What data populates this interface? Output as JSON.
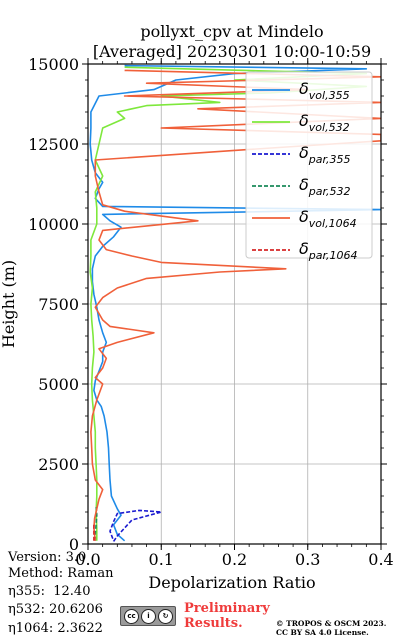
{
  "chart_data": {
    "type": "line",
    "title": "pollyxt_cpv at Mindelo",
    "subtitle": "[Averaged] 20230301 10:00-10:59",
    "xlabel": "Depolarization Ratio",
    "ylabel": "Height (m)",
    "xlim": [
      0.0,
      0.4
    ],
    "ylim": [
      0,
      15000
    ],
    "x_ticks": [
      "0.0",
      "0.1",
      "0.2",
      "0.3",
      "0.4"
    ],
    "y_ticks": [
      "0",
      "2500",
      "5000",
      "7500",
      "10000",
      "12500",
      "15000"
    ],
    "grid": true,
    "legend_position": "upper-right",
    "series": [
      {
        "name": "δ vol,355",
        "symbol": "δ",
        "sub": "vol,355",
        "color": "#1f8be8",
        "dash": "solid",
        "points": [
          [
            0.05,
            100
          ],
          [
            0.04,
            300
          ],
          [
            0.035,
            600
          ],
          [
            0.045,
            900
          ],
          [
            0.04,
            1100
          ],
          [
            0.032,
            1500
          ],
          [
            0.03,
            2000
          ],
          [
            0.029,
            2500
          ],
          [
            0.028,
            3000
          ],
          [
            0.026,
            3500
          ],
          [
            0.022,
            4000
          ],
          [
            0.018,
            4300
          ],
          [
            0.012,
            4500
          ],
          [
            0.008,
            4800
          ],
          [
            0.01,
            5100
          ],
          [
            0.015,
            5400
          ],
          [
            0.02,
            5700
          ],
          [
            0.02,
            6000
          ],
          [
            0.025,
            6300
          ],
          [
            0.02,
            6600
          ],
          [
            0.015,
            7000
          ],
          [
            0.012,
            7400
          ],
          [
            0.008,
            7800
          ],
          [
            0.006,
            8200
          ],
          [
            0.006,
            8600
          ],
          [
            0.01,
            9000
          ],
          [
            0.02,
            9300
          ],
          [
            0.035,
            9600
          ],
          [
            0.045,
            9900
          ],
          [
            0.03,
            10100
          ],
          [
            0.02,
            10300
          ],
          [
            0.4,
            10450
          ],
          [
            0.02,
            10550
          ],
          [
            0.01,
            10800
          ],
          [
            0.015,
            11100
          ],
          [
            0.02,
            11300
          ],
          [
            0.01,
            11600
          ],
          [
            0.005,
            12000
          ],
          [
            0.003,
            12500
          ],
          [
            0.004,
            13000
          ],
          [
            0.004,
            13500
          ],
          [
            0.015,
            14000
          ],
          [
            0.09,
            14200
          ],
          [
            0.12,
            14500
          ],
          [
            0.2,
            14700
          ],
          [
            0.38,
            14850
          ],
          [
            0.05,
            14950
          ]
        ]
      },
      {
        "name": "δ vol,532",
        "symbol": "δ",
        "sub": "vol,532",
        "color": "#7ee83c",
        "dash": "solid",
        "points": [
          [
            0.012,
            100
          ],
          [
            0.012,
            500
          ],
          [
            0.011,
            1000
          ],
          [
            0.012,
            1500
          ],
          [
            0.012,
            2000
          ],
          [
            0.011,
            2500
          ],
          [
            0.01,
            3000
          ],
          [
            0.01,
            3500
          ],
          [
            0.008,
            4000
          ],
          [
            0.006,
            4500
          ],
          [
            0.005,
            5000
          ],
          [
            0.006,
            5500
          ],
          [
            0.008,
            6000
          ],
          [
            0.007,
            6500
          ],
          [
            0.005,
            7000
          ],
          [
            0.004,
            7500
          ],
          [
            0.006,
            8000
          ],
          [
            0.003,
            8500
          ],
          [
            0.004,
            9000
          ],
          [
            0.004,
            9500
          ],
          [
            0.012,
            10000
          ],
          [
            0.012,
            10500
          ],
          [
            0.01,
            11000
          ],
          [
            0.02,
            11500
          ],
          [
            0.01,
            12000
          ],
          [
            0.015,
            12500
          ],
          [
            0.02,
            13000
          ],
          [
            0.05,
            13300
          ],
          [
            0.04,
            13500
          ],
          [
            0.08,
            13700
          ],
          [
            0.18,
            13800
          ],
          [
            0.1,
            14000
          ],
          [
            0.25,
            14100
          ],
          [
            0.38,
            14300
          ],
          [
            0.2,
            14500
          ],
          [
            0.38,
            14700
          ],
          [
            0.05,
            14900
          ]
        ]
      },
      {
        "name": "δ par,355",
        "symbol": "δ",
        "sub": "par,355",
        "color": "#1a1ad0",
        "dash": "4,2",
        "points": [
          [
            0.035,
            80
          ],
          [
            0.04,
            250
          ],
          [
            0.05,
            500
          ],
          [
            0.06,
            750
          ],
          [
            0.1,
            1000
          ],
          [
            0.07,
            1050
          ],
          [
            0.04,
            950
          ],
          [
            0.035,
            700
          ],
          [
            0.03,
            400
          ],
          [
            0.035,
            100
          ]
        ]
      },
      {
        "name": "δ par,532",
        "symbol": "δ",
        "sub": "par,532",
        "color": "#1a8a5a",
        "dash": "4,2",
        "points": [
          [
            0.01,
            100
          ],
          [
            0.01,
            300
          ],
          [
            0.011,
            600
          ],
          [
            0.012,
            900
          ],
          [
            0.011,
            1200
          ]
        ]
      },
      {
        "name": "δ vol,1064",
        "symbol": "δ",
        "sub": "vol,1064",
        "color": "#f0603a",
        "dash": "solid",
        "points": [
          [
            0.01,
            100
          ],
          [
            0.008,
            500
          ],
          [
            0.009,
            800
          ],
          [
            0.012,
            1100
          ],
          [
            0.015,
            1400
          ],
          [
            0.02,
            1700
          ],
          [
            0.01,
            2000
          ],
          [
            0.006,
            2500
          ],
          [
            0.005,
            3000
          ],
          [
            0.004,
            3500
          ],
          [
            0.006,
            4000
          ],
          [
            0.012,
            4500
          ],
          [
            0.02,
            5000
          ],
          [
            0.01,
            5200
          ],
          [
            0.02,
            5500
          ],
          [
            0.025,
            5800
          ],
          [
            0.015,
            6100
          ],
          [
            0.04,
            6300
          ],
          [
            0.09,
            6600
          ],
          [
            0.03,
            6800
          ],
          [
            0.02,
            7000
          ],
          [
            0.01,
            7400
          ],
          [
            0.02,
            7700
          ],
          [
            0.04,
            8000
          ],
          [
            0.08,
            8300
          ],
          [
            0.18,
            8500
          ],
          [
            0.27,
            8600
          ],
          [
            0.1,
            8800
          ],
          [
            0.06,
            9000
          ],
          [
            0.025,
            9200
          ],
          [
            0.015,
            9500
          ],
          [
            0.02,
            9800
          ],
          [
            0.15,
            10100
          ],
          [
            0.05,
            10400
          ],
          [
            0.02,
            10600
          ],
          [
            0.015,
            11000
          ],
          [
            0.01,
            11500
          ],
          [
            0.01,
            12000
          ],
          [
            0.2,
            12300
          ],
          [
            0.4,
            12600
          ],
          [
            0.4,
            12800
          ],
          [
            0.1,
            13000
          ],
          [
            0.4,
            13300
          ],
          [
            0.15,
            13600
          ],
          [
            0.4,
            13800
          ],
          [
            0.05,
            14000
          ],
          [
            0.3,
            14200
          ],
          [
            0.08,
            14400
          ],
          [
            0.4,
            14600
          ],
          [
            0.05,
            14800
          ]
        ]
      },
      {
        "name": "δ par,1064",
        "symbol": "δ",
        "sub": "par,1064",
        "color": "#d62828",
        "dash": "4,2",
        "points": [
          [
            0.008,
            100
          ],
          [
            0.008,
            600
          ]
        ]
      }
    ]
  },
  "info": {
    "version": "Version: 3.0",
    "method": "Method: Raman",
    "eta355": "η355:  12.40",
    "eta532": "η532: 20.6206",
    "eta1064": "η1064: 2.3622"
  },
  "footer": {
    "license_badge_text": "BY   SA",
    "preliminary": "Preliminary\nResults.",
    "copyright": "© TROPOS & OSCM 2023.\nCC BY SA 4.0 License."
  }
}
